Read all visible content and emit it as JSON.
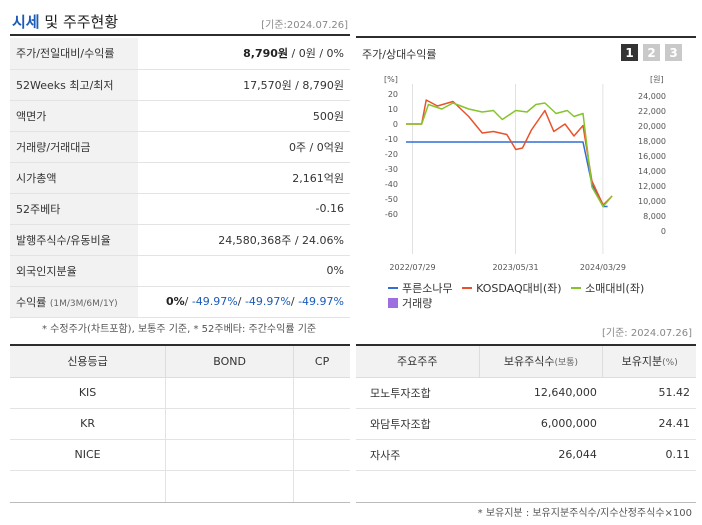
{
  "header": {
    "title_blue": "시세",
    "title_rest": " 및 주주현황",
    "date": "[기준:2024.07.26]"
  },
  "info": {
    "rows": [
      {
        "label": "주가/전일대비/수익률",
        "value_main": "8,790원",
        "value_rest": " / 0원 / 0%"
      },
      {
        "label": "52Weeks 최고/최저",
        "value": "17,570원 / 8,790원"
      },
      {
        "label": "액면가",
        "value": "500원"
      },
      {
        "label": "거래량/거래대금",
        "value": "0주 / 0억원"
      },
      {
        "label": "시가총액",
        "value": "2,161억원"
      },
      {
        "label": "52주베타",
        "value": "-0.16"
      },
      {
        "label": "발행주식수/유동비율",
        "value": "24,580,368주 / 24.06%"
      },
      {
        "label": "외국인지분율",
        "value": "0%"
      }
    ],
    "returns": {
      "label": "수익률",
      "label_small": "(1M/3M/6M/1Y)",
      "v1": "0%",
      "v2": "-49.97%",
      "v3": "-49.97%",
      "v4": "-49.97%",
      "sep": "/ "
    }
  },
  "notes": "* 수정주가(차트포함), 보통주 기준, * 52주베타: 주간수익률 기준",
  "chart": {
    "title": "주가/상대수익률",
    "pages": [
      "1",
      "2",
      "3"
    ],
    "left_unit": "[%]",
    "right_unit": "[원]",
    "legend": {
      "s1": "푸른소나무",
      "s2": "KOSDAQ대비(좌)",
      "s3": "소매대비(좌)",
      "s4": "거래량"
    }
  },
  "chart_data": {
    "type": "line",
    "y_left": {
      "ticks": [
        "20",
        "10",
        "0",
        "-10",
        "-20",
        "-30",
        "-40",
        "-50",
        "-60"
      ],
      "range": [
        -60,
        20
      ]
    },
    "y_right": {
      "ticks": [
        "24,000",
        "22,000",
        "20,000",
        "18,000",
        "16,000",
        "14,000",
        "12,000",
        "10,000",
        "8,000",
        "0"
      ]
    },
    "x_ticks": [
      "2022/07/29",
      "2023/05/31",
      "2024/03/29"
    ],
    "series": [
      {
        "name": "푸른소나무",
        "color": "#2f6fd6",
        "points": [
          [
            0,
            -12
          ],
          [
            0.79,
            -12
          ],
          [
            0.83,
            -40
          ],
          [
            0.88,
            -55
          ],
          [
            0.9,
            -55
          ]
        ]
      },
      {
        "name": "KOSDAQ대비(좌)",
        "color": "#e8532c",
        "points": [
          [
            0,
            0
          ],
          [
            0.07,
            0
          ],
          [
            0.09,
            16
          ],
          [
            0.14,
            12
          ],
          [
            0.21,
            15
          ],
          [
            0.28,
            5
          ],
          [
            0.34,
            -6
          ],
          [
            0.39,
            -5
          ],
          [
            0.45,
            -7
          ],
          [
            0.49,
            -17
          ],
          [
            0.52,
            -16
          ],
          [
            0.56,
            -4
          ],
          [
            0.62,
            9
          ],
          [
            0.66,
            -5
          ],
          [
            0.71,
            0
          ],
          [
            0.75,
            -8
          ],
          [
            0.79,
            -1
          ],
          [
            0.83,
            -38
          ],
          [
            0.88,
            -54
          ],
          [
            0.92,
            -48
          ]
        ]
      },
      {
        "name": "소매대비(좌)",
        "color": "#86c42c",
        "points": [
          [
            0,
            0
          ],
          [
            0.07,
            0
          ],
          [
            0.1,
            13
          ],
          [
            0.16,
            10
          ],
          [
            0.21,
            14
          ],
          [
            0.28,
            10
          ],
          [
            0.34,
            8
          ],
          [
            0.39,
            9
          ],
          [
            0.43,
            3
          ],
          [
            0.49,
            9
          ],
          [
            0.54,
            8
          ],
          [
            0.58,
            13
          ],
          [
            0.62,
            14
          ],
          [
            0.67,
            7
          ],
          [
            0.72,
            9
          ],
          [
            0.75,
            5
          ],
          [
            0.79,
            7
          ],
          [
            0.83,
            -42
          ],
          [
            0.88,
            -55
          ],
          [
            0.92,
            -48
          ]
        ]
      }
    ]
  },
  "credit": {
    "headers": [
      "신용등급",
      "BOND",
      "CP"
    ],
    "rows": [
      [
        "KIS",
        "",
        ""
      ],
      [
        "KR",
        "",
        ""
      ],
      [
        "NICE",
        "",
        ""
      ]
    ]
  },
  "holders": {
    "date": "[기준: 2024.07.26]",
    "h1": "주요주주",
    "h2_main": "보유주식수",
    "h2_small": "(보통)",
    "h3_main": "보유지분",
    "h3_small": "(%)",
    "rows": [
      {
        "name": "모노투자조합",
        "shares": "12,640,000",
        "pct": "51.42"
      },
      {
        "name": "와담투자조합",
        "shares": "6,000,000",
        "pct": "24.41"
      },
      {
        "name": "자사주",
        "shares": "26,044",
        "pct": "0.11"
      }
    ]
  },
  "footnote": "* 보유지분 : 보유지분주식수/지수산정주식수×100"
}
